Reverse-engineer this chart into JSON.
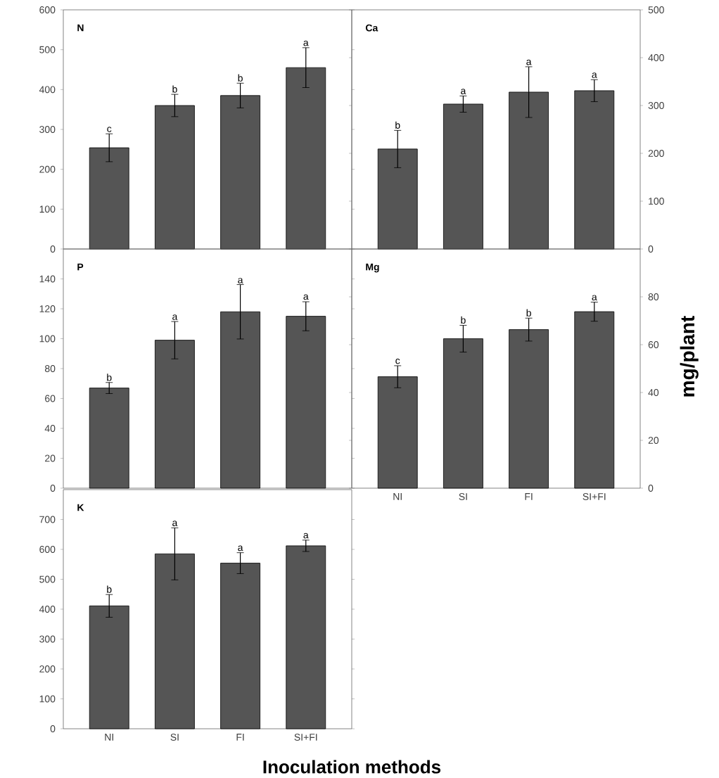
{
  "chart_data": [
    {
      "type": "bar",
      "title": "N",
      "categories": [
        "NI",
        "SI",
        "FI",
        "SI+FI"
      ],
      "values": [
        254,
        360,
        385,
        455
      ],
      "errors": [
        35,
        28,
        31,
        50
      ],
      "color": "#555555",
      "ylim": [
        0,
        600
      ],
      "yticks": [
        0,
        100,
        200,
        300,
        400,
        500,
        600
      ],
      "tick_labels": "y",
      "annotations": [
        {
          "text": "c",
          "x": "NI",
          "y": 289
        },
        {
          "text": "b",
          "x": "SI",
          "y": 388
        },
        {
          "text": "b",
          "x": "FI",
          "y": 416
        },
        {
          "text": "a",
          "x": "SI+FI",
          "y": 505
        }
      ]
    },
    {
      "type": "bar",
      "title": "Ca",
      "categories": [
        "NI",
        "SI",
        "FI",
        "SI+FI"
      ],
      "values": [
        209,
        303,
        328,
        331
      ],
      "errors": [
        39,
        17,
        53,
        23
      ],
      "color": "#555555",
      "ylim": [
        0,
        500
      ],
      "yticks": [
        0,
        100,
        200,
        300,
        400,
        500
      ],
      "tick_labels": "y",
      "annotations": [
        {
          "text": "b",
          "x": "NI",
          "y": 248
        },
        {
          "text": "a",
          "x": "SI",
          "y": 320
        },
        {
          "text": "a",
          "x": "FI",
          "y": 381
        },
        {
          "text": "a",
          "x": "SI+FI",
          "y": 354
        }
      ]
    },
    {
      "type": "bar",
      "title": "P",
      "categories": [
        "NI",
        "SI",
        "FI",
        "SI+FI"
      ],
      "values": [
        67,
        99,
        118,
        115
      ],
      "errors": [
        3.7,
        12.5,
        18.2,
        9.7
      ],
      "color": "#555555",
      "ylim": [
        0,
        160
      ],
      "yticks": [
        0,
        20,
        40,
        60,
        80,
        100,
        120,
        140
      ],
      "tick_labels": "y",
      "annotations": [
        {
          "text": "b",
          "x": "NI",
          "y": 70.6
        },
        {
          "text": "a",
          "x": "SI",
          "y": 111.4
        },
        {
          "text": "a",
          "x": "FI",
          "y": 135.9
        },
        {
          "text": "a",
          "x": "SI+FI",
          "y": 124.9
        }
      ]
    },
    {
      "type": "bar",
      "title": "Mg",
      "ylabel": "mg/plant",
      "categories": [
        "NI",
        "SI",
        "FI",
        "SI+FI"
      ],
      "values": [
        46.6,
        62.5,
        66.3,
        73.8
      ],
      "errors": [
        4.6,
        5.6,
        4.8,
        4.0
      ],
      "color": "#555555",
      "ylim": [
        0,
        100
      ],
      "yticks": [
        0,
        20,
        40,
        60,
        80
      ],
      "annotations": [
        {
          "text": "c",
          "x": "NI",
          "y": 51.2
        },
        {
          "text": "b",
          "x": "SI",
          "y": 68.1
        },
        {
          "text": "b",
          "x": "FI",
          "y": 71.1
        },
        {
          "text": "a",
          "x": "SI+FI",
          "y": 77.8
        }
      ]
    },
    {
      "type": "bar",
      "title": "K",
      "xlabel": "Inoculation methods",
      "categories": [
        "NI",
        "SI",
        "FI",
        "SI+FI"
      ],
      "values": [
        411,
        585,
        554,
        612
      ],
      "errors": [
        38,
        87,
        35,
        19
      ],
      "color": "#555555",
      "ylim": [
        0,
        800
      ],
      "yticks": [
        0,
        100,
        200,
        300,
        400,
        500,
        600,
        700
      ],
      "annotations": [
        {
          "text": "b",
          "x": "NI",
          "y": 449
        },
        {
          "text": "a",
          "x": "SI",
          "y": 672
        },
        {
          "text": "a",
          "x": "FI",
          "y": 589
        },
        {
          "text": "a",
          "x": "SI+FI",
          "y": 631
        }
      ]
    }
  ]
}
